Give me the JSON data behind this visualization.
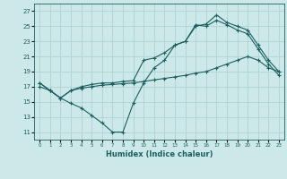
{
  "xlabel": "Humidex (Indice chaleur)",
  "bg_color": "#cce8e8",
  "grid_color": "#aacece",
  "line_color": "#1a6060",
  "xlim": [
    -0.5,
    23.5
  ],
  "ylim": [
    10,
    28
  ],
  "yticks": [
    11,
    13,
    15,
    17,
    19,
    21,
    23,
    25,
    27
  ],
  "xticks": [
    0,
    1,
    2,
    3,
    4,
    5,
    6,
    7,
    8,
    9,
    10,
    11,
    12,
    13,
    14,
    15,
    16,
    17,
    18,
    19,
    20,
    21,
    22,
    23
  ],
  "line1_x": [
    0,
    1,
    2,
    3,
    4,
    5,
    6,
    7,
    8,
    9,
    10,
    11,
    12,
    13,
    14,
    15,
    16,
    17,
    18,
    19,
    20,
    21,
    22,
    23
  ],
  "line1_y": [
    17.5,
    16.5,
    15.5,
    14.8,
    14.2,
    13.2,
    12.2,
    11.0,
    11.0,
    14.8,
    17.5,
    19.5,
    20.5,
    22.5,
    23.0,
    25.0,
    25.3,
    26.5,
    25.5,
    25.0,
    24.5,
    22.5,
    20.5,
    19.0
  ],
  "line2_x": [
    0,
    1,
    2,
    3,
    4,
    5,
    6,
    7,
    8,
    9,
    10,
    11,
    12,
    13,
    14,
    15,
    16,
    17,
    18,
    19,
    20,
    21,
    22,
    23
  ],
  "line2_y": [
    17.5,
    16.5,
    15.5,
    16.5,
    17.0,
    17.3,
    17.5,
    17.5,
    17.7,
    17.8,
    20.5,
    20.8,
    21.5,
    22.5,
    23.0,
    25.2,
    25.0,
    25.8,
    25.2,
    24.5,
    24.0,
    22.0,
    20.0,
    18.5
  ],
  "line3_x": [
    0,
    1,
    2,
    3,
    4,
    5,
    6,
    7,
    8,
    9,
    10,
    11,
    12,
    13,
    14,
    15,
    16,
    17,
    18,
    19,
    20,
    21,
    22,
    23
  ],
  "line3_y": [
    17.0,
    16.5,
    15.5,
    16.5,
    16.8,
    17.0,
    17.2,
    17.3,
    17.4,
    17.5,
    17.7,
    17.9,
    18.1,
    18.3,
    18.5,
    18.8,
    19.0,
    19.5,
    20.0,
    20.5,
    21.0,
    20.5,
    19.5,
    19.0
  ]
}
